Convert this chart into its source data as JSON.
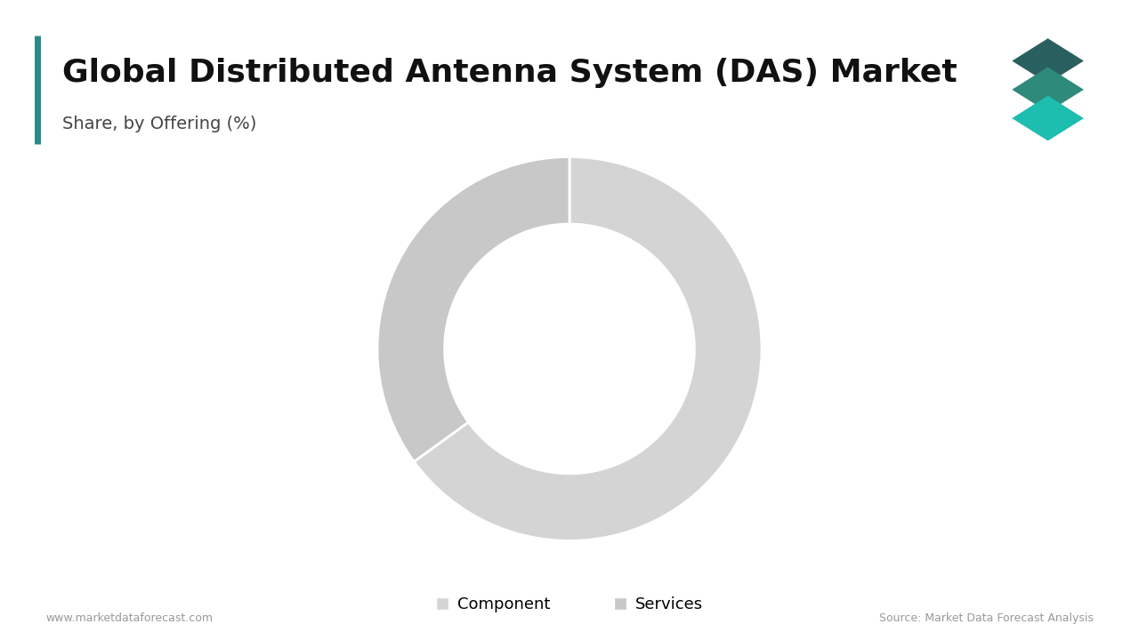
{
  "title": "Global Distributed Antenna System (DAS) Market",
  "subtitle": "Share, by Offering (%)",
  "segments": [
    "Component",
    "Services"
  ],
  "values": [
    65,
    35
  ],
  "colors": [
    "#d4d4d4",
    "#c8c8c8"
  ],
  "background_color": "#ffffff",
  "title_fontsize": 26,
  "subtitle_fontsize": 14,
  "legend_fontsize": 13,
  "footer_left": "www.marketdataforecast.com",
  "footer_right": "Source: Market Data Forecast Analysis",
  "accent_bar_color": "#2a8a8a",
  "wedge_edgecolor": "#ffffff",
  "wedge_linewidth": 2.0,
  "donut_width": 0.35
}
